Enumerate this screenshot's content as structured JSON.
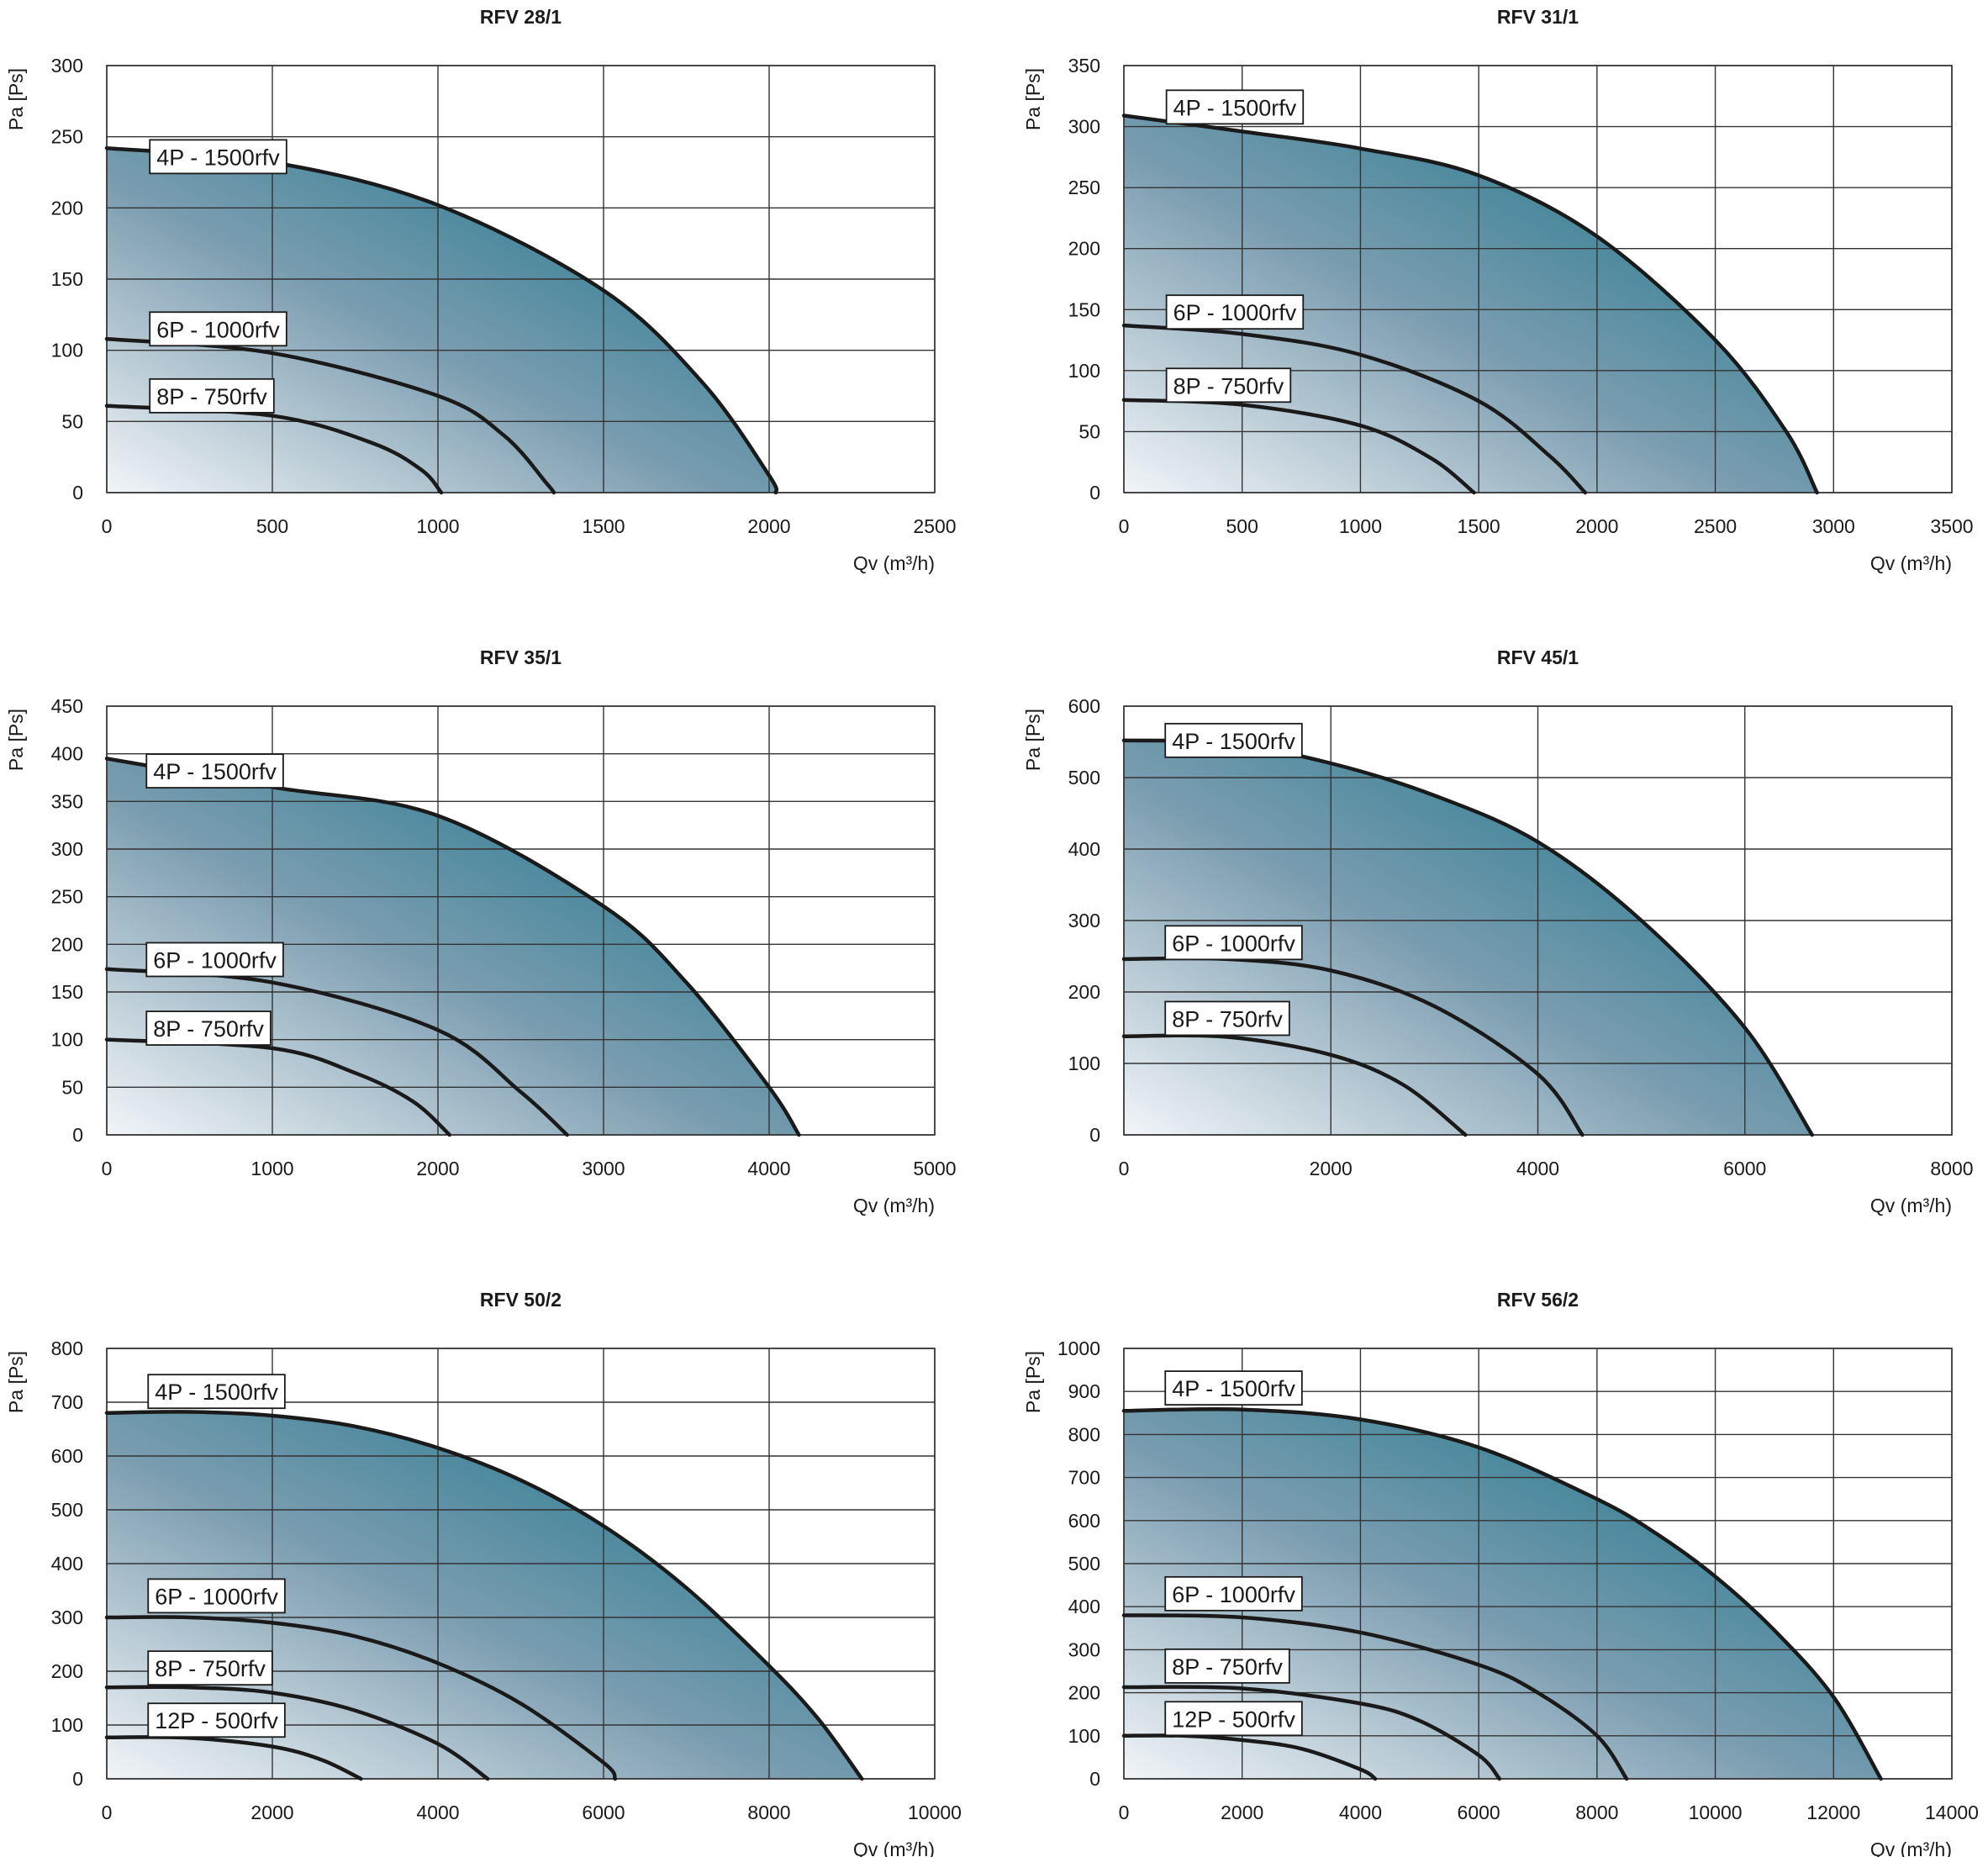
{
  "colors": {
    "gradient_light": "#f2f5f8",
    "gradient_mid": "#7b9db0",
    "gradient_dark": "#0f6f86",
    "curve": "#1a1a1a",
    "grid": "#333333",
    "label_box": "#ffffff"
  },
  "chart_data": [
    {
      "type": "area",
      "title": "RFV 28/1",
      "xlabel": "Qv (m³/h)",
      "ylabel": "Pa [Ps]",
      "xlim": [
        0,
        2500
      ],
      "ylim": [
        0,
        300
      ],
      "xticks": [
        0,
        500,
        1000,
        1500,
        2000,
        2500
      ],
      "yticks": [
        0,
        50,
        100,
        150,
        200,
        250,
        300
      ],
      "grid": true,
      "series": [
        {
          "name": "4P - 1500rfv",
          "label_at": [
            130,
            236
          ],
          "x": [
            0,
            500,
            1000,
            1500,
            1800,
            2000,
            2020
          ],
          "y": [
            242,
            232,
            202,
            142,
            77,
            12,
            0
          ]
        },
        {
          "name": "6P - 1000rfv",
          "label_at": [
            130,
            115
          ],
          "x": [
            0,
            500,
            1000,
            1200,
            1330,
            1350
          ],
          "y": [
            108,
            98,
            68,
            40,
            6,
            0
          ]
        },
        {
          "name": "8P - 750rfv",
          "label_at": [
            130,
            68
          ],
          "x": [
            0,
            500,
            800,
            950,
            1010
          ],
          "y": [
            61,
            54,
            35,
            16,
            0
          ]
        }
      ]
    },
    {
      "type": "area",
      "title": "RFV 31/1",
      "xlabel": "Qv (m³/h)",
      "ylabel": "Pa [Ps]",
      "xlim": [
        0,
        3500
      ],
      "ylim": [
        0,
        350
      ],
      "xticks": [
        0,
        500,
        1000,
        1500,
        2000,
        2500,
        3000,
        3500
      ],
      "yticks": [
        0,
        50,
        100,
        150,
        200,
        250,
        300,
        350
      ],
      "grid": true,
      "series": [
        {
          "name": "4P - 1500rfv",
          "label_at": [
            180,
            316
          ],
          "x": [
            0,
            500,
            1000,
            1500,
            2000,
            2500,
            2800,
            2930
          ],
          "y": [
            309,
            296,
            282,
            260,
            210,
            125,
            50,
            0
          ]
        },
        {
          "name": "6P - 1000rfv",
          "label_at": [
            180,
            148
          ],
          "x": [
            0,
            500,
            1000,
            1500,
            1800,
            1950
          ],
          "y": [
            137,
            130,
            113,
            75,
            30,
            0
          ]
        },
        {
          "name": "8P - 750rfv",
          "label_at": [
            180,
            88
          ],
          "x": [
            0,
            500,
            1000,
            1300,
            1480
          ],
          "y": [
            76,
            72,
            55,
            28,
            0
          ]
        }
      ]
    },
    {
      "type": "area",
      "title": "RFV 35/1",
      "xlabel": "Qv (m³/h)",
      "ylabel": "Pa [Ps]",
      "xlim": [
        0,
        5000
      ],
      "ylim": [
        0,
        450
      ],
      "xticks": [
        0,
        1000,
        2000,
        3000,
        4000,
        5000
      ],
      "yticks": [
        0,
        50,
        100,
        150,
        200,
        250,
        300,
        350,
        400,
        450
      ],
      "grid": true,
      "series": [
        {
          "name": "4P - 1500rfv",
          "label_at": [
            240,
            382
          ],
          "x": [
            0,
            1000,
            2000,
            3000,
            3500,
            4000,
            4180
          ],
          "y": [
            395,
            365,
            335,
            240,
            160,
            50,
            0
          ]
        },
        {
          "name": "6P - 1000rfv",
          "label_at": [
            240,
            184
          ],
          "x": [
            0,
            1000,
            2000,
            2500,
            2780
          ],
          "y": [
            174,
            160,
            110,
            45,
            0
          ]
        },
        {
          "name": "8P - 750rfv",
          "label_at": [
            240,
            112
          ],
          "x": [
            0,
            1000,
            1500,
            1850,
            2070
          ],
          "y": [
            100,
            91,
            65,
            35,
            0
          ]
        }
      ]
    },
    {
      "type": "area",
      "title": "RFV 45/1",
      "xlabel": "Qv (m³/h)",
      "ylabel": "Pa [Ps]",
      "xlim": [
        0,
        8000
      ],
      "ylim": [
        0,
        600
      ],
      "xticks": [
        0,
        2000,
        4000,
        6000,
        8000
      ],
      "yticks": [
        0,
        100,
        200,
        300,
        400,
        500,
        600
      ],
      "grid": true,
      "series": [
        {
          "name": "4P - 1500rfv",
          "label_at": [
            400,
            552
          ],
          "x": [
            0,
            1000,
            2000,
            3000,
            4000,
            5000,
            6000,
            6650
          ],
          "y": [
            552,
            548,
            520,
            475,
            410,
            300,
            150,
            0
          ]
        },
        {
          "name": "6P - 1000rfv",
          "label_at": [
            400,
            269
          ],
          "x": [
            0,
            1000,
            2000,
            3000,
            4000,
            4430
          ],
          "y": [
            246,
            246,
            230,
            180,
            85,
            0
          ]
        },
        {
          "name": "8P - 750rfv",
          "label_at": [
            400,
            163
          ],
          "x": [
            0,
            1000,
            2000,
            2700,
            3300
          ],
          "y": [
            138,
            137,
            112,
            70,
            0
          ]
        }
      ]
    },
    {
      "type": "area",
      "title": "RFV 50/2",
      "xlabel": "Qv (m³/h)",
      "ylabel": "Pa [Ps]",
      "xlim": [
        0,
        10000
      ],
      "ylim": [
        0,
        800
      ],
      "xticks": [
        0,
        2000,
        4000,
        6000,
        8000,
        10000
      ],
      "yticks": [
        0,
        100,
        200,
        300,
        400,
        500,
        600,
        700,
        800
      ],
      "grid": true,
      "series": [
        {
          "name": "4P - 1500rfv",
          "label_at": [
            500,
            720
          ],
          "x": [
            0,
            1000,
            2000,
            3000,
            4000,
            5000,
            6000,
            7000,
            8000,
            8600,
            9120
          ],
          "y": [
            680,
            682,
            675,
            655,
            615,
            555,
            470,
            355,
            210,
            110,
            0
          ]
        },
        {
          "name": "6P - 1000rfv",
          "label_at": [
            500,
            340
          ],
          "x": [
            0,
            1000,
            2000,
            3000,
            4000,
            5000,
            6000,
            6140
          ],
          "y": [
            300,
            300,
            290,
            265,
            215,
            140,
            30,
            0
          ]
        },
        {
          "name": "8P - 750rfv",
          "label_at": [
            500,
            206
          ],
          "x": [
            0,
            1000,
            2000,
            3000,
            4000,
            4600
          ],
          "y": [
            170,
            170,
            160,
            127,
            65,
            0
          ]
        },
        {
          "name": "12P - 500rfv",
          "label_at": [
            500,
            109
          ],
          "x": [
            0,
            1000,
            2000,
            2600,
            3070
          ],
          "y": [
            77,
            76,
            60,
            35,
            0
          ]
        }
      ]
    },
    {
      "type": "area",
      "title": "RFV 56/2",
      "xlabel": "Qv (m³/h)",
      "ylabel": "Pa [Ps]",
      "xlim": [
        0,
        14000
      ],
      "ylim": [
        0,
        1000
      ],
      "xticks": [
        0,
        2000,
        4000,
        6000,
        8000,
        10000,
        12000,
        14000
      ],
      "yticks": [
        0,
        100,
        200,
        300,
        400,
        500,
        600,
        700,
        800,
        900,
        1000
      ],
      "grid": true,
      "series": [
        {
          "name": "4P - 1500rfv",
          "label_at": [
            700,
            908
          ],
          "x": [
            0,
            2000,
            4000,
            6000,
            8000,
            9000,
            10000,
            11000,
            12000,
            12800
          ],
          "y": [
            855,
            858,
            835,
            770,
            650,
            570,
            470,
            345,
            190,
            0
          ]
        },
        {
          "name": "6P - 1000rfv",
          "label_at": [
            700,
            430
          ],
          "x": [
            0,
            2000,
            4000,
            6000,
            7000,
            8000,
            8500
          ],
          "y": [
            380,
            375,
            340,
            265,
            200,
            100,
            0
          ]
        },
        {
          "name": "8P - 750rfv",
          "label_at": [
            700,
            262
          ],
          "x": [
            0,
            2000,
            4000,
            5000,
            6000,
            6350
          ],
          "y": [
            213,
            210,
            175,
            135,
            55,
            0
          ]
        },
        {
          "name": "12P - 500rfv",
          "label_at": [
            700,
            140
          ],
          "x": [
            0,
            1000,
            2000,
            3000,
            4000,
            4250
          ],
          "y": [
            100,
            100,
            90,
            70,
            22,
            0
          ]
        }
      ]
    }
  ]
}
